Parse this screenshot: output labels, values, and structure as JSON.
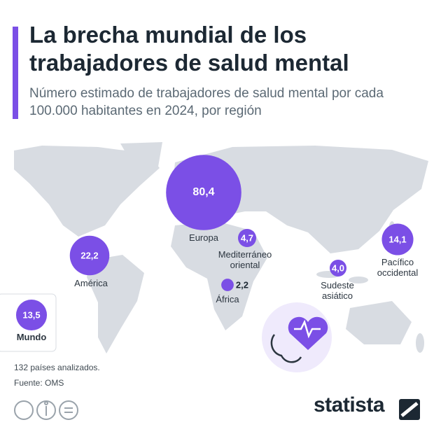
{
  "chart_data": {
    "type": "bubble",
    "title": "La brecha mundial de los trabajadores de salud mental",
    "subtitle": "Número estimado de trabajadores de salud mental por cada 100.000 habitantes en 2024, por región",
    "categories": [
      "Europa",
      "Mediterráneo oriental",
      "América",
      "África",
      "Sudeste asiático",
      "Pacífico occidental"
    ],
    "values": [
      80.4,
      4.7,
      22.2,
      2.2,
      4.0,
      14.1
    ],
    "value_labels": [
      "80,4",
      "4,7",
      "22,2",
      "2,2",
      "4,0",
      "14,1"
    ],
    "color": "#7b4fe6",
    "world": {
      "label": "Mundo",
      "value": 13.5,
      "value_label": "13,5"
    },
    "notes": [
      "132 países analizados.",
      "Fuente: OMS"
    ],
    "brand": "statista"
  }
}
